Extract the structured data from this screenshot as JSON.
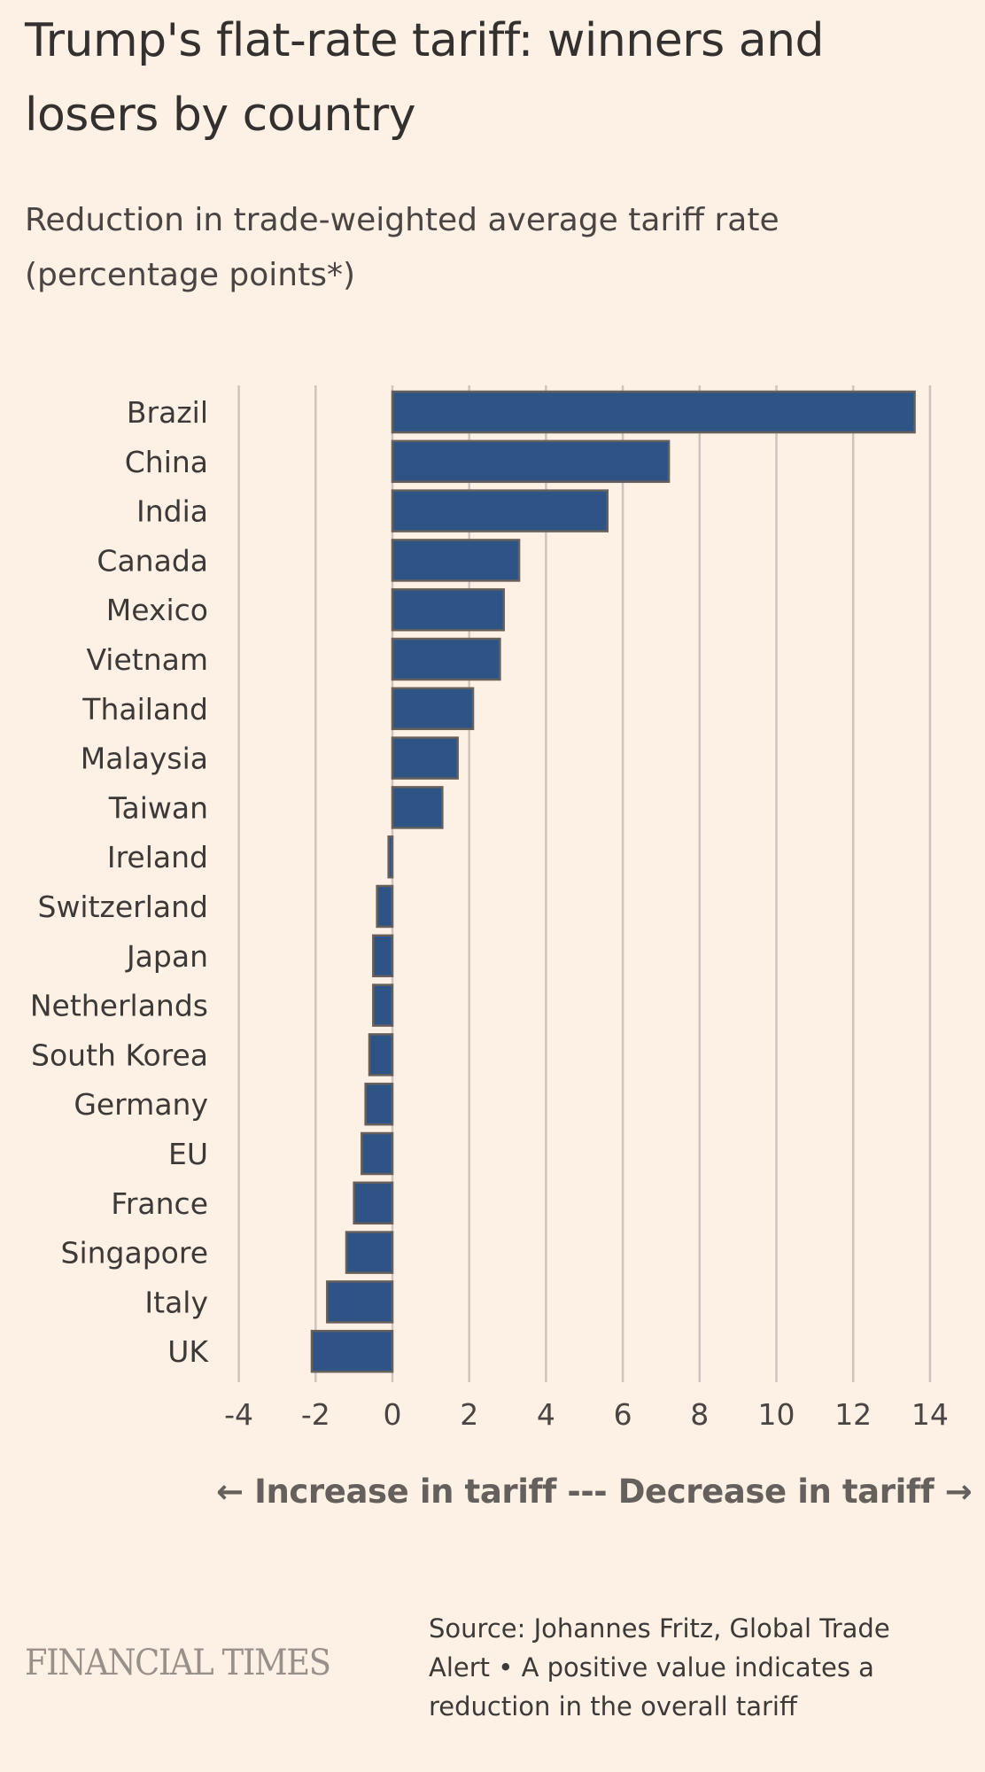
{
  "header": {
    "title": "Trump's flat-rate tariff: winners and losers by country",
    "subtitle": "Reduction in trade-weighted average tariff rate (percentage points*)"
  },
  "chart_data": {
    "type": "bar",
    "orientation": "horizontal",
    "title": "Trump's flat-rate tariff: winners and losers by country",
    "subtitle": "Reduction in trade-weighted average tariff rate (percentage points*)",
    "categories": [
      "Brazil",
      "China",
      "India",
      "Canada",
      "Mexico",
      "Vietnam",
      "Thailand",
      "Malaysia",
      "Taiwan",
      "Ireland",
      "Switzerland",
      "Japan",
      "Netherlands",
      "South Korea",
      "Germany",
      "EU",
      "France",
      "Singapore",
      "Italy",
      "UK"
    ],
    "values": [
      13.6,
      7.2,
      5.6,
      3.3,
      2.9,
      2.8,
      2.1,
      1.7,
      1.3,
      -0.1,
      -0.4,
      -0.5,
      -0.5,
      -0.6,
      -0.7,
      -0.8,
      -1.0,
      -1.2,
      -1.7,
      -2.1
    ],
    "xlabel": "← Increase in tariff --- Decrease in tariff →",
    "ylabel": "",
    "xlim": [
      -4,
      14
    ],
    "xticks": [
      -4,
      -2,
      0,
      2,
      4,
      6,
      8,
      10,
      12,
      14
    ],
    "grid": true,
    "bar_color": "#2e5485",
    "bar_edge_color": "#66605c",
    "gridline_color": "#cec4bb"
  },
  "footer": {
    "logo": "FINANCIAL TIMES",
    "source": "Source: Johannes Fritz, Global Trade Alert • A positive value indicates a reduction in the overall tariff"
  }
}
